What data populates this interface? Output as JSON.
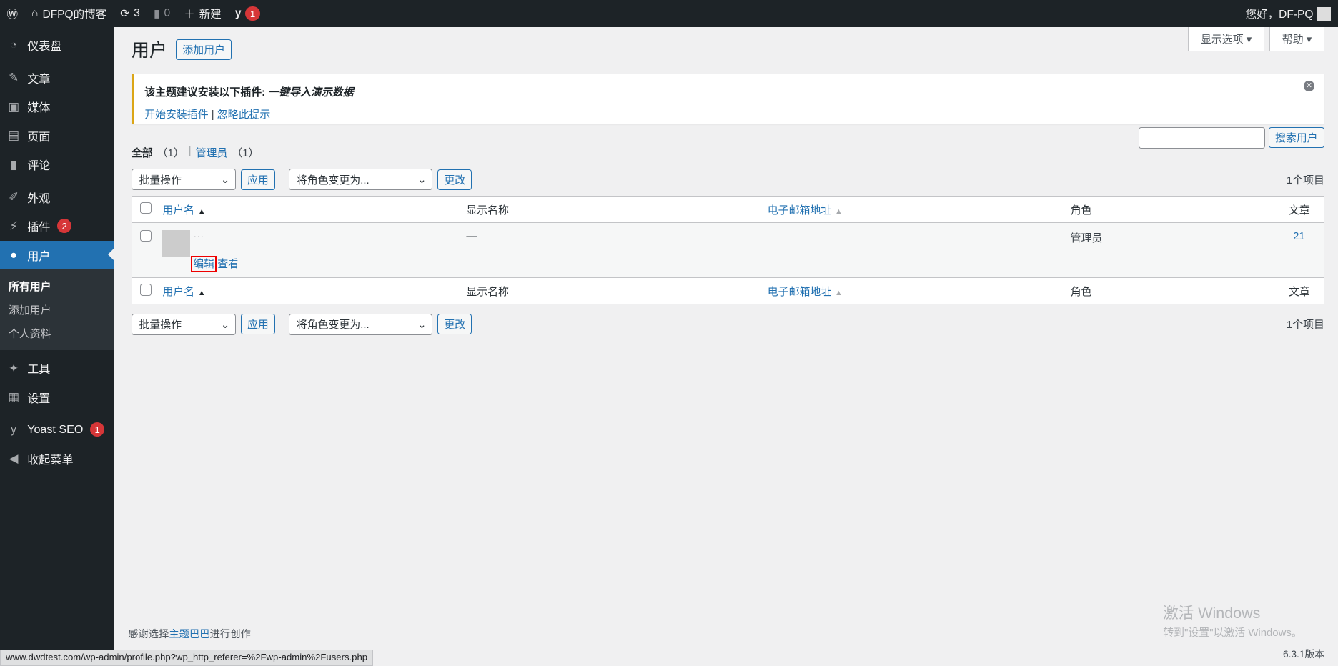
{
  "adminbar": {
    "site": "DFPQ的博客",
    "updates": "3",
    "comments": "0",
    "new": "新建",
    "yoast_count": "1",
    "greeting": "您好，DF-PQ"
  },
  "menu": [
    {
      "icon": "dashboard-icon",
      "glyph": "◔",
      "label": "仪表盘"
    },
    {
      "icon": "pin-icon",
      "glyph": "✎",
      "label": "文章"
    },
    {
      "icon": "media-icon",
      "glyph": "▣",
      "label": "媒体"
    },
    {
      "icon": "page-icon",
      "glyph": "▤",
      "label": "页面"
    },
    {
      "icon": "comment-icon",
      "glyph": "▮",
      "label": "评论"
    },
    {
      "icon": "appearance-icon",
      "glyph": "✐",
      "label": "外观"
    },
    {
      "icon": "plugin-icon",
      "glyph": "⚡",
      "label": "插件",
      "badge": "2"
    },
    {
      "icon": "user-icon",
      "glyph": "●",
      "label": "用户"
    },
    {
      "icon": "tools-icon",
      "glyph": "✦",
      "label": "工具"
    },
    {
      "icon": "settings-icon",
      "glyph": "▦",
      "label": "设置"
    },
    {
      "icon": "yoast-icon",
      "glyph": "y",
      "label": "Yoast SEO",
      "badge": "1"
    },
    {
      "icon": "collapse-icon",
      "glyph": "◀",
      "label": "收起菜单"
    }
  ],
  "submenu": [
    "所有用户",
    "添加用户",
    "个人资料"
  ],
  "screen_options": "显示选项 ▾",
  "help": "帮助 ▾",
  "page": {
    "title": "用户",
    "add_new": "添加用户"
  },
  "notice": {
    "text": "该主题建议安装以下插件: ",
    "plugin": "一键导入演示数据",
    "install": "开始安装插件",
    "sep": " | ",
    "dismiss": "忽略此提示"
  },
  "filters": {
    "all": "全部",
    "all_count": "（1）",
    "sep": "|",
    "admin": "管理员",
    "admin_count": "（1）"
  },
  "search_button": "搜索用户",
  "bulk": {
    "select": "批量操作",
    "apply": "应用",
    "role": "将角色变更为...",
    "change": "更改",
    "count": "1个项目"
  },
  "columns": {
    "username": "用户名",
    "name": "显示名称",
    "email": "电子邮箱地址",
    "role": "角色",
    "posts": "文章"
  },
  "rows": [
    {
      "username": "···",
      "name": "—",
      "email": "",
      "role": "管理员",
      "posts": "21",
      "edit": "编辑",
      "view": "查看"
    }
  ],
  "footer": {
    "pre": "感谢选择",
    "link": "主题巴巴",
    "post": "进行创作",
    "version": "6.3.1版本"
  },
  "statusbar": "www.dwdtest.com/wp-admin/profile.php?wp_http_referer=%2Fwp-admin%2Fusers.php",
  "watermark": {
    "title": "激活 Windows",
    "sub": "转到\"设置\"以激活 Windows。"
  }
}
